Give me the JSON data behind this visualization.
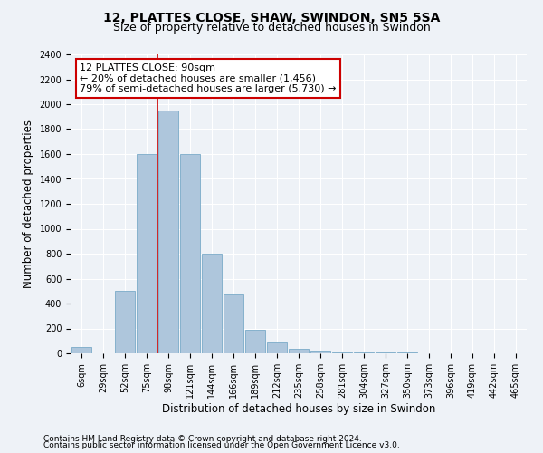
{
  "title": "12, PLATTES CLOSE, SHAW, SWINDON, SN5 5SA",
  "subtitle": "Size of property relative to detached houses in Swindon",
  "xlabel": "Distribution of detached houses by size in Swindon",
  "ylabel": "Number of detached properties",
  "categories": [
    "6sqm",
    "29sqm",
    "52sqm",
    "75sqm",
    "98sqm",
    "121sqm",
    "144sqm",
    "166sqm",
    "189sqm",
    "212sqm",
    "235sqm",
    "258sqm",
    "281sqm",
    "304sqm",
    "327sqm",
    "350sqm",
    "373sqm",
    "396sqm",
    "419sqm",
    "442sqm",
    "465sqm"
  ],
  "values": [
    50,
    0,
    500,
    1600,
    1950,
    1600,
    800,
    470,
    190,
    85,
    35,
    20,
    10,
    5,
    5,
    5,
    0,
    0,
    0,
    0,
    0
  ],
  "bar_color": "#aec6dc",
  "bar_edge_color": "#7aaac8",
  "vline_color": "#cc0000",
  "annotation_text": "12 PLATTES CLOSE: 90sqm\n← 20% of detached houses are smaller (1,456)\n79% of semi-detached houses are larger (5,730) →",
  "annotation_box_color": "white",
  "annotation_box_edge_color": "#cc0000",
  "ylim": [
    0,
    2400
  ],
  "yticks": [
    0,
    200,
    400,
    600,
    800,
    1000,
    1200,
    1400,
    1600,
    1800,
    2000,
    2200,
    2400
  ],
  "footer1": "Contains HM Land Registry data © Crown copyright and database right 2024.",
  "footer2": "Contains public sector information licensed under the Open Government Licence v3.0.",
  "bg_color": "#eef2f7",
  "plot_bg_color": "#eef2f7",
  "title_fontsize": 10,
  "subtitle_fontsize": 9,
  "tick_fontsize": 7,
  "label_fontsize": 8.5,
  "footer_fontsize": 6.5,
  "annotation_fontsize": 8,
  "vline_x": 3.5
}
